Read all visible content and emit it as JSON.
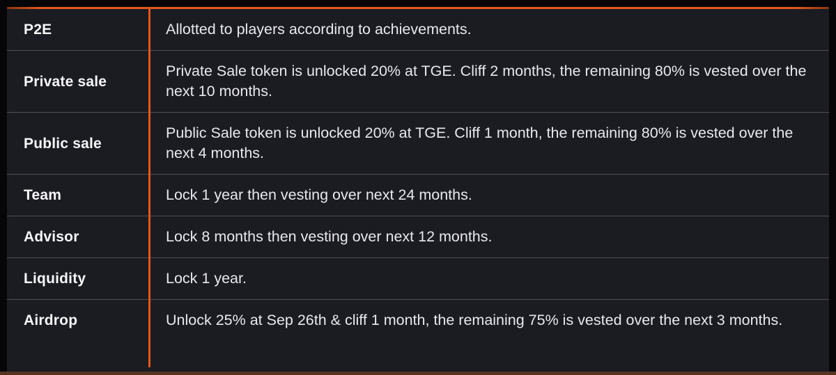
{
  "page": {
    "background_color": "#060608",
    "table_background_color": "#1b1b22",
    "accent_color": "#e4581c",
    "separator_color": "#4e4e56",
    "bottom_bar_color": "#553521",
    "label_text_color": "#f7f6f8",
    "body_text_color": "#e9e8ec"
  },
  "table": {
    "rows": [
      {
        "label": "P2E",
        "description": "Allotted to players according to achievements."
      },
      {
        "label": "Private sale",
        "description": "Private Sale token is unlocked 20% at TGE. Cliff 2 months, the remaining 80% is vested over the next 10 months."
      },
      {
        "label": "Public sale",
        "description": "Public Sale token is unlocked 20% at TGE. Cliff 1 month, the remaining 80% is vested over the next 4 months."
      },
      {
        "label": "Team",
        "description": "Lock 1 year then vesting over next 24 months."
      },
      {
        "label": "Advisor",
        "description": "Lock 8 months then vesting over next 12 months."
      },
      {
        "label": "Liquidity",
        "description": "Lock 1 year."
      },
      {
        "label": "Airdrop",
        "description": "Unlock 25% at Sep 26th & cliff 1 month, the remaining 75% is vested over the next 3 months."
      }
    ]
  }
}
